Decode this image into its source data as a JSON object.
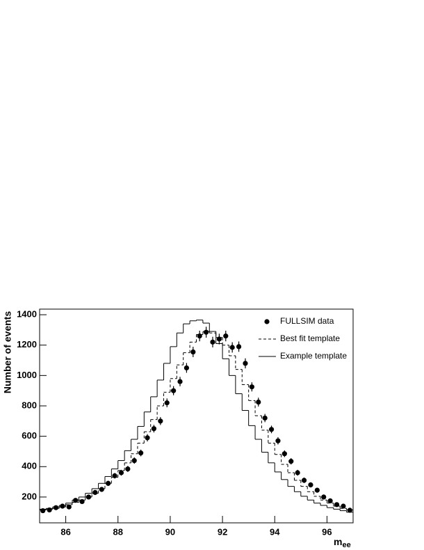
{
  "chart_data": {
    "type": "histogram",
    "ylabel": "Number of events",
    "xlabel": "m",
    "xlabel_sub": "ee",
    "bins": [
      85,
      85.25,
      85.5,
      85.75,
      86,
      86.25,
      86.5,
      86.75,
      87,
      87.25,
      87.5,
      87.75,
      88,
      88.25,
      88.5,
      88.75,
      89,
      89.25,
      89.5,
      89.75,
      90,
      90.25,
      90.5,
      90.75,
      91,
      91.25,
      91.5,
      91.75,
      92,
      92.25,
      92.5,
      92.75,
      93,
      93.25,
      93.5,
      93.75,
      94,
      94.25,
      94.5,
      94.75,
      95,
      95.25,
      95.5,
      95.75,
      96,
      96.25,
      96.5,
      96.75,
      97
    ],
    "series": [
      {
        "name": "FULLSIM data",
        "style": "points",
        "color": "#000000",
        "values": [
          110,
          115,
          130,
          140,
          135,
          178,
          170,
          200,
          230,
          250,
          290,
          340,
          360,
          385,
          440,
          490,
          590,
          650,
          700,
          820,
          900,
          960,
          1050,
          1155,
          1260,
          1285,
          1220,
          1240,
          1260,
          1185,
          1190,
          1080,
          925,
          825,
          720,
          645,
          570,
          485,
          435,
          360,
          310,
          280,
          245,
          200,
          175,
          150,
          140,
          113
        ],
        "errors": [
          10,
          11,
          11,
          12,
          12,
          13,
          13,
          14,
          15,
          16,
          17,
          18,
          19,
          20,
          21,
          22,
          24,
          25,
          26,
          29,
          30,
          31,
          32,
          34,
          35,
          36,
          35,
          35,
          35,
          34,
          34,
          33,
          30,
          29,
          27,
          25,
          24,
          22,
          21,
          19,
          18,
          17,
          16,
          14,
          13,
          12,
          12,
          11
        ]
      },
      {
        "name": "Best fit template",
        "style": "dashed",
        "color": "#000000",
        "values": [
          115,
          120,
          125,
          135,
          150,
          165,
          180,
          200,
          225,
          255,
          290,
          330,
          375,
          425,
          485,
          555,
          630,
          710,
          800,
          890,
          980,
          1070,
          1150,
          1220,
          1270,
          1290,
          1280,
          1250,
          1200,
          1130,
          1040,
          940,
          835,
          735,
          640,
          555,
          480,
          415,
          360,
          310,
          270,
          235,
          205,
          180,
          160,
          140,
          125,
          115
        ]
      },
      {
        "name": "Example template",
        "style": "solid",
        "color": "#000000",
        "values": [
          120,
          125,
          135,
          145,
          160,
          180,
          200,
          225,
          255,
          290,
          335,
          385,
          440,
          505,
          580,
          665,
          760,
          860,
          970,
          1080,
          1190,
          1280,
          1340,
          1360,
          1365,
          1345,
          1290,
          1210,
          1110,
          1000,
          880,
          770,
          670,
          580,
          495,
          425,
          365,
          315,
          270,
          235,
          205,
          180,
          160,
          145,
          130,
          120,
          110,
          100
        ]
      }
    ],
    "xlim": [
      85,
      97
    ],
    "ylim": [
      30,
      1437
    ],
    "xticks": [
      86,
      88,
      90,
      92,
      94,
      96
    ],
    "yticks": [
      200,
      400,
      600,
      800,
      1000,
      1200,
      1400
    ],
    "legend": "top-right"
  }
}
